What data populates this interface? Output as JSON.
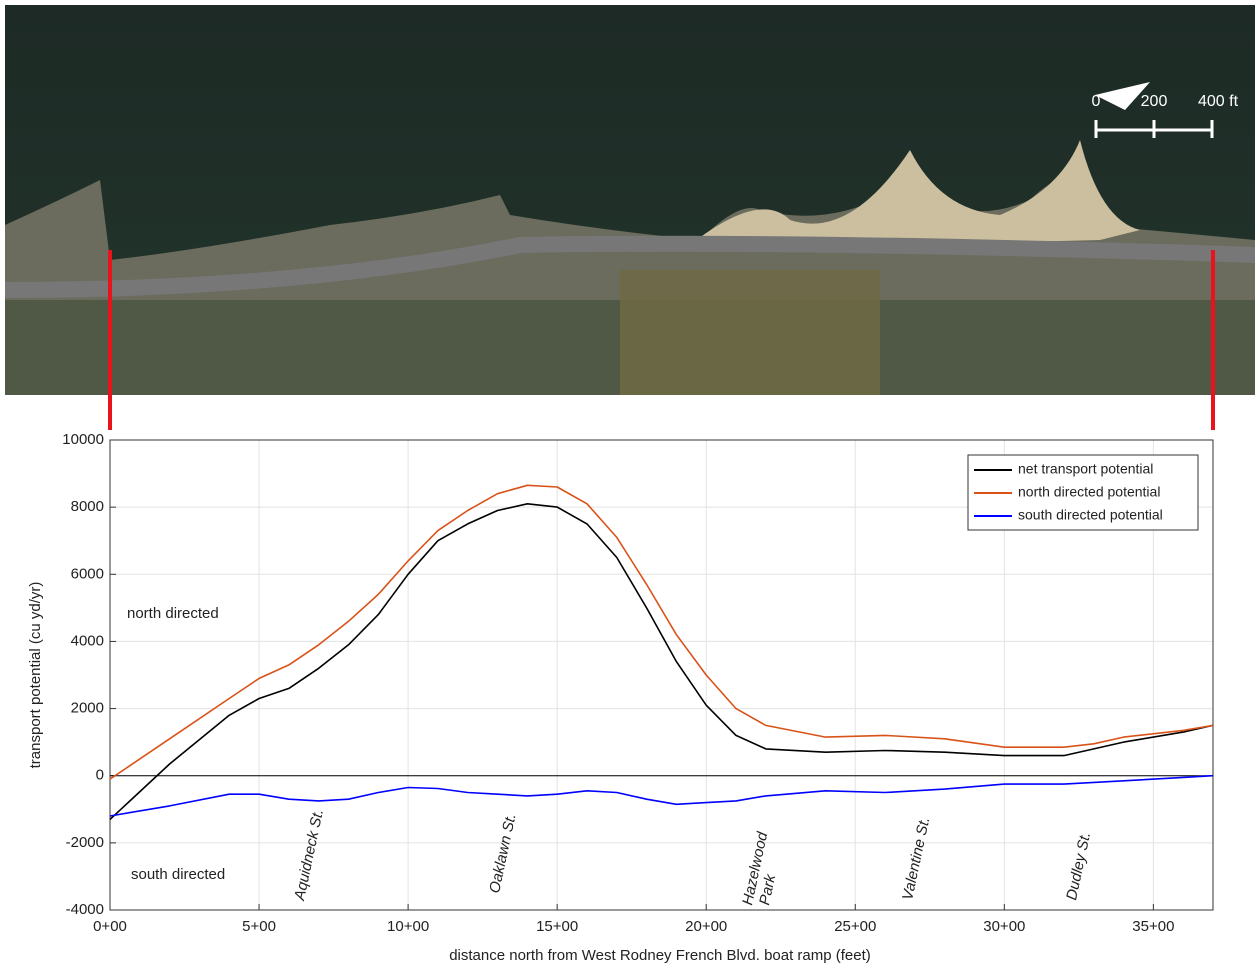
{
  "chart_data": {
    "type": "line",
    "xlabel": "distance north from West Rodney French Blvd. boat ramp (feet)",
    "ylabel": "transport potential (cu yd/yr)",
    "x": [
      0,
      200,
      400,
      500,
      600,
      700,
      800,
      900,
      1000,
      1100,
      1200,
      1300,
      1400,
      1500,
      1600,
      1700,
      1800,
      1900,
      2000,
      2100,
      2200,
      2400,
      2600,
      2800,
      3000,
      3200,
      3300,
      3400,
      3600,
      3700
    ],
    "series": [
      {
        "name": "net transport potential",
        "color": "#000000",
        "values": [
          -1300,
          350,
          1800,
          2300,
          2600,
          3200,
          3900,
          4800,
          6000,
          7000,
          7500,
          7900,
          8100,
          8000,
          7500,
          6500,
          5000,
          3400,
          2100,
          1200,
          800,
          700,
          750,
          700,
          600,
          600,
          800,
          1000,
          1300,
          1500
        ]
      },
      {
        "name": "north directed potential",
        "color": "#d95319",
        "values": [
          -100,
          1100,
          2300,
          2900,
          3300,
          3900,
          4600,
          5400,
          6400,
          7300,
          7900,
          8400,
          8650,
          8600,
          8100,
          7100,
          5700,
          4200,
          3000,
          2000,
          1500,
          1150,
          1200,
          1100,
          850,
          850,
          950,
          1150,
          1350,
          1500
        ]
      },
      {
        "name": "south directed potential",
        "color": "#0000ff",
        "values": [
          -1200,
          -900,
          -550,
          -550,
          -700,
          -750,
          -700,
          -500,
          -350,
          -380,
          -500,
          -550,
          -600,
          -550,
          -450,
          -500,
          -700,
          -850,
          -800,
          -750,
          -600,
          -450,
          -500,
          -400,
          -250,
          -250,
          -200,
          -150,
          -50,
          0
        ]
      }
    ],
    "xlim": [
      0,
      3700
    ],
    "ylim": [
      -4000,
      10000
    ],
    "xticks": [
      {
        "value": 0,
        "label": "0+00"
      },
      {
        "value": 500,
        "label": "5+00"
      },
      {
        "value": 1000,
        "label": "10+00"
      },
      {
        "value": 1500,
        "label": "15+00"
      },
      {
        "value": 2000,
        "label": "20+00"
      },
      {
        "value": 2500,
        "label": "25+00"
      },
      {
        "value": 3000,
        "label": "30+00"
      },
      {
        "value": 3500,
        "label": "35+00"
      }
    ],
    "yticks": [
      -4000,
      -2000,
      0,
      2000,
      4000,
      6000,
      8000,
      10000
    ],
    "grid": true,
    "legend": "upper right",
    "annotations": [
      "north directed",
      "south directed",
      "Aquidneck St.",
      "Oaklawn St.",
      "Hazelwood",
      "Park",
      "Valentine St.",
      "Dudley St."
    ],
    "scale_bar": [
      "0",
      "200",
      "400 ft"
    ]
  }
}
